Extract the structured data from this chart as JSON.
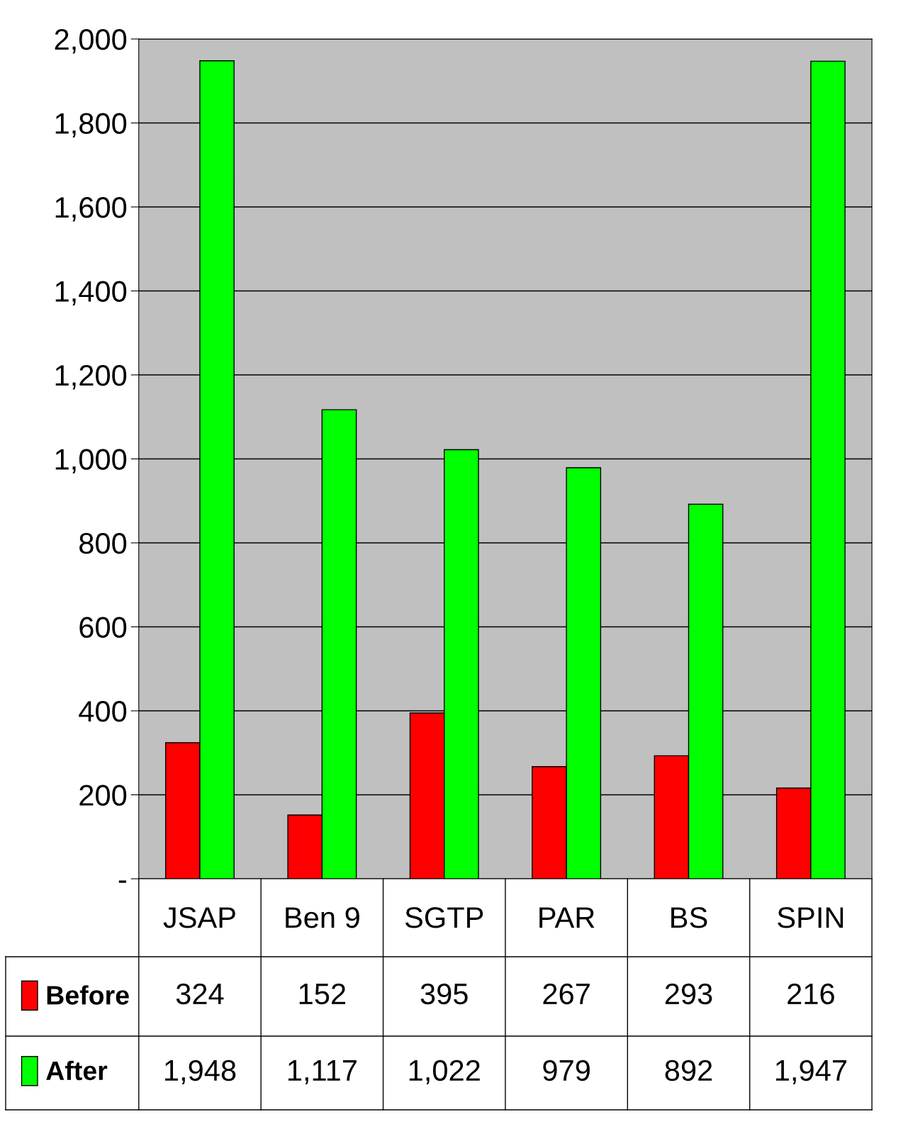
{
  "chart_data": {
    "type": "bar",
    "categories": [
      "JSAP",
      "Ben 9",
      "SGTP",
      "PAR",
      "BS",
      "SPIN"
    ],
    "series": [
      {
        "name": "Before",
        "color": "#ff0000",
        "values": [
          324,
          152,
          395,
          267,
          293,
          216
        ],
        "value_labels": [
          "324",
          "152",
          "395",
          "267",
          "293",
          "216"
        ]
      },
      {
        "name": "After",
        "color": "#00ff00",
        "values": [
          1948,
          1117,
          1022,
          979,
          892,
          1947
        ],
        "value_labels": [
          "1,948",
          "1,117",
          "1,022",
          "979",
          "892",
          "1,947"
        ]
      }
    ],
    "ylim": [
      0,
      2000
    ],
    "yticks": [
      {
        "value": 0,
        "label": "-"
      },
      200,
      400,
      600,
      800,
      {
        "value": 1000,
        "label": "1,000"
      },
      {
        "value": 1200,
        "label": "1,200"
      },
      {
        "value": 1400,
        "label": "1,400"
      },
      {
        "value": 1600,
        "label": "1,600"
      },
      {
        "value": 1800,
        "label": "1,800"
      },
      {
        "value": 2000,
        "label": "2,000"
      }
    ],
    "grid": "y",
    "legend": "bottom left"
  }
}
